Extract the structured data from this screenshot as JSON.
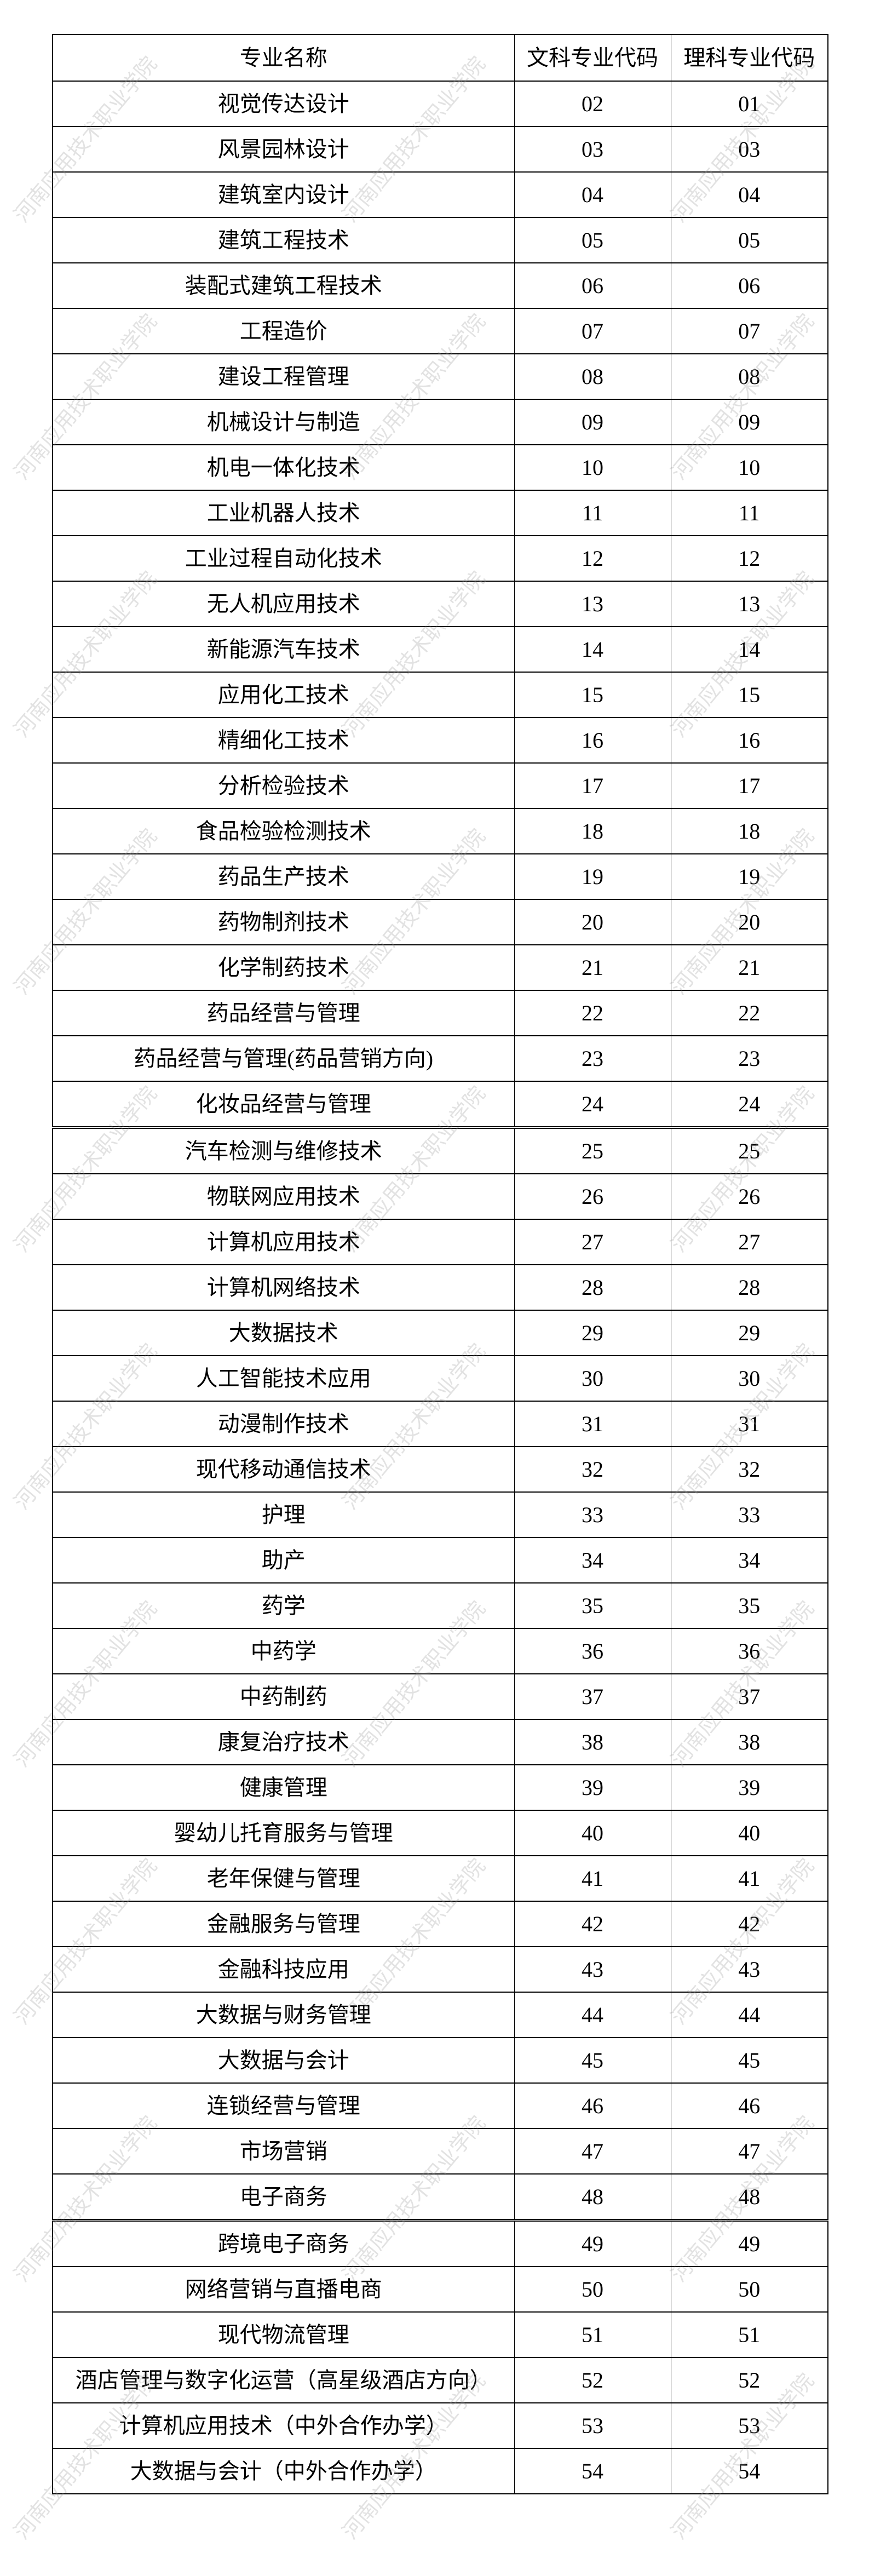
{
  "watermark": "河南应用技术职业学院",
  "table": {
    "headers": [
      "专业名称",
      "文科专业代码",
      "理科专业代码"
    ],
    "rows": [
      [
        "视觉传达设计",
        "02",
        "01"
      ],
      [
        "风景园林设计",
        "03",
        "03"
      ],
      [
        "建筑室内设计",
        "04",
        "04"
      ],
      [
        "建筑工程技术",
        "05",
        "05"
      ],
      [
        "装配式建筑工程技术",
        "06",
        "06"
      ],
      [
        "工程造价",
        "07",
        "07"
      ],
      [
        "建设工程管理",
        "08",
        "08"
      ],
      [
        "机械设计与制造",
        "09",
        "09"
      ],
      [
        "机电一体化技术",
        "10",
        "10"
      ],
      [
        "工业机器人技术",
        "11",
        "11"
      ],
      [
        "工业过程自动化技术",
        "12",
        "12"
      ],
      [
        "无人机应用技术",
        "13",
        "13"
      ],
      [
        "新能源汽车技术",
        "14",
        "14"
      ],
      [
        "应用化工技术",
        "15",
        "15"
      ],
      [
        "精细化工技术",
        "16",
        "16"
      ],
      [
        "分析检验技术",
        "17",
        "17"
      ],
      [
        "食品检验检测技术",
        "18",
        "18"
      ],
      [
        "药品生产技术",
        "19",
        "19"
      ],
      [
        "药物制剂技术",
        "20",
        "20"
      ],
      [
        "化学制药技术",
        "21",
        "21"
      ],
      [
        "药品经营与管理",
        "22",
        "22"
      ],
      [
        "药品经营与管理(药品营销方向)",
        "23",
        "23"
      ],
      [
        "化妆品经营与管理",
        "24",
        "24"
      ],
      [
        "汽车检测与维修技术",
        "25",
        "25"
      ],
      [
        "物联网应用技术",
        "26",
        "26"
      ],
      [
        "计算机应用技术",
        "27",
        "27"
      ],
      [
        "计算机网络技术",
        "28",
        "28"
      ],
      [
        "大数据技术",
        "29",
        "29"
      ],
      [
        "人工智能技术应用",
        "30",
        "30"
      ],
      [
        "动漫制作技术",
        "31",
        "31"
      ],
      [
        "现代移动通信技术",
        "32",
        "32"
      ],
      [
        "护理",
        "33",
        "33"
      ],
      [
        "助产",
        "34",
        "34"
      ],
      [
        "药学",
        "35",
        "35"
      ],
      [
        "中药学",
        "36",
        "36"
      ],
      [
        "中药制药",
        "37",
        "37"
      ],
      [
        "康复治疗技术",
        "38",
        "38"
      ],
      [
        "健康管理",
        "39",
        "39"
      ],
      [
        "婴幼儿托育服务与管理",
        "40",
        "40"
      ],
      [
        "老年保健与管理",
        "41",
        "41"
      ],
      [
        "金融服务与管理",
        "42",
        "42"
      ],
      [
        "金融科技应用",
        "43",
        "43"
      ],
      [
        "大数据与财务管理",
        "44",
        "44"
      ],
      [
        "大数据与会计",
        "45",
        "45"
      ],
      [
        "连锁经营与管理",
        "46",
        "46"
      ],
      [
        "市场营销",
        "47",
        "47"
      ],
      [
        "电子商务",
        "48",
        "48"
      ],
      [
        "跨境电子商务",
        "49",
        "49"
      ],
      [
        "网络营销与直播电商",
        "50",
        "50"
      ],
      [
        "现代物流管理",
        "51",
        "51"
      ],
      [
        "酒店管理与数字化运营（高星级酒店方向）",
        "52",
        "52"
      ],
      [
        "计算机应用技术（中外合作办学）",
        "53",
        "53"
      ],
      [
        "大数据与会计（中外合作办学）",
        "54",
        "54"
      ]
    ]
  }
}
